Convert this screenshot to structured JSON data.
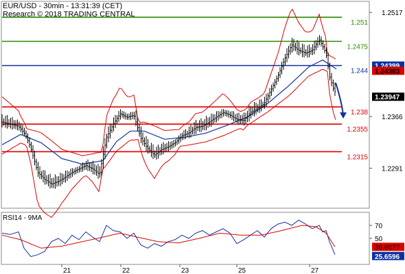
{
  "chart_data": {
    "type": "line",
    "title": "EUR/USD - 30min - 13:31:39 (CET)",
    "subtitle": "Research © 2018 TRADING CENTRAL",
    "y_ticks": [
      1.2517,
      1.2366,
      1.2291
    ],
    "x_ticks": [
      "21",
      "22",
      "23",
      "25",
      "27"
    ],
    "x_tick_positions": [
      90,
      176,
      262,
      345,
      451
    ],
    "price_axis": {
      "ylim": [
        1.2233,
        1.2533
      ]
    },
    "levels": [
      {
        "value": 1.251,
        "label": "1.251",
        "color": "#2e8b00"
      },
      {
        "value": 1.2475,
        "label": "1.2475",
        "color": "#2e8b00"
      },
      {
        "value": 1.244,
        "label": "1.244",
        "color": "#1030a0"
      },
      {
        "value": 1.238,
        "label": "1.238",
        "color": "#dd0000"
      },
      {
        "value": 1.2355,
        "label": "1.2355",
        "color": "#dd0000"
      },
      {
        "value": 1.2315,
        "label": "1.2315",
        "color": "#dd0000"
      }
    ],
    "price_badges": [
      {
        "value": 1.24399,
        "label": "1.24399",
        "bg": "#1030a0",
        "fg": "#ffffff"
      },
      {
        "value": 1.24383,
        "label": "1.24383",
        "bg": "#dd0000",
        "fg": "#000000"
      },
      {
        "value": 1.23947,
        "label": "1.23947",
        "bg": "#000000",
        "fg": "#ffffff"
      }
    ],
    "price_series": {
      "name": "EUR/USD",
      "x": [
        3,
        15,
        27,
        37,
        45,
        55,
        65,
        75,
        85,
        95,
        105,
        115,
        125,
        135,
        145,
        155,
        165,
        175,
        185,
        195,
        205,
        215,
        225,
        235,
        245,
        255,
        265,
        275,
        285,
        295,
        305,
        315,
        325,
        335,
        345,
        355,
        365,
        375,
        385,
        395,
        405,
        415,
        425,
        435,
        445,
        455,
        465,
        475,
        480,
        485,
        490
      ],
      "values": [
        1.2358,
        1.2355,
        1.2352,
        1.234,
        1.232,
        1.2285,
        1.2275,
        1.2268,
        1.2272,
        1.2278,
        1.2285,
        1.229,
        1.2295,
        1.229,
        1.2282,
        1.2335,
        1.2355,
        1.237,
        1.2365,
        1.2368,
        1.2335,
        1.232,
        1.231,
        1.2318,
        1.2322,
        1.2328,
        1.2338,
        1.2342,
        1.235,
        1.2352,
        1.2358,
        1.2365,
        1.2372,
        1.2368,
        1.2362,
        1.236,
        1.2372,
        1.2378,
        1.2385,
        1.2405,
        1.2425,
        1.245,
        1.247,
        1.2462,
        1.2458,
        1.2462,
        1.2478,
        1.2458,
        1.2425,
        1.2408,
        1.2398
      ]
    },
    "ma_series": {
      "name": "MA",
      "x": [
        3,
        30,
        60,
        90,
        120,
        150,
        170,
        190,
        210,
        240,
        270,
        300,
        330,
        360,
        390,
        420,
        450,
        470,
        490
      ],
      "values": [
        1.2325,
        1.234,
        1.2328,
        1.2305,
        1.2297,
        1.2302,
        1.233,
        1.2345,
        1.2345,
        1.2333,
        1.2336,
        1.2342,
        1.2353,
        1.2365,
        1.2385,
        1.241,
        1.2438,
        1.2448,
        1.2435
      ]
    },
    "forecast_arrow": {
      "from_value": 1.2415,
      "to_value": 1.2365
    },
    "rsi_panel": {
      "title": "RSI14 - 9MA",
      "y_ticks": [
        70,
        50
      ],
      "ylim": [
        10,
        90
      ],
      "rsi_value_label": "25.6596",
      "ma_value_label": "36.6077",
      "rsi_series": {
        "name": "RSI14",
        "x": [
          3,
          15,
          27,
          35,
          45,
          55,
          65,
          75,
          85,
          95,
          105,
          115,
          125,
          135,
          145,
          155,
          165,
          175,
          185,
          195,
          205,
          215,
          225,
          235,
          245,
          255,
          265,
          275,
          285,
          295,
          305,
          315,
          325,
          335,
          345,
          355,
          365,
          375,
          385,
          395,
          405,
          415,
          425,
          435,
          445,
          455,
          465,
          470,
          475,
          480,
          488
        ],
        "values": [
          58,
          56,
          60,
          35,
          22,
          25,
          30,
          45,
          50,
          42,
          55,
          48,
          60,
          52,
          45,
          70,
          62,
          60,
          50,
          58,
          40,
          35,
          42,
          38,
          45,
          48,
          55,
          50,
          58,
          62,
          55,
          60,
          65,
          58,
          42,
          48,
          55,
          62,
          52,
          65,
          72,
          75,
          70,
          78,
          72,
          65,
          70,
          60,
          62,
          45,
          25
        ]
      },
      "ma_series": {
        "name": "9MA",
        "x": [
          3,
          30,
          60,
          90,
          120,
          150,
          175,
          200,
          230,
          260,
          290,
          320,
          350,
          380,
          410,
          440,
          460,
          475,
          488
        ],
        "values": [
          55,
          48,
          35,
          38,
          45,
          52,
          58,
          52,
          45,
          43,
          50,
          58,
          55,
          55,
          62,
          70,
          68,
          58,
          37
        ]
      }
    }
  }
}
